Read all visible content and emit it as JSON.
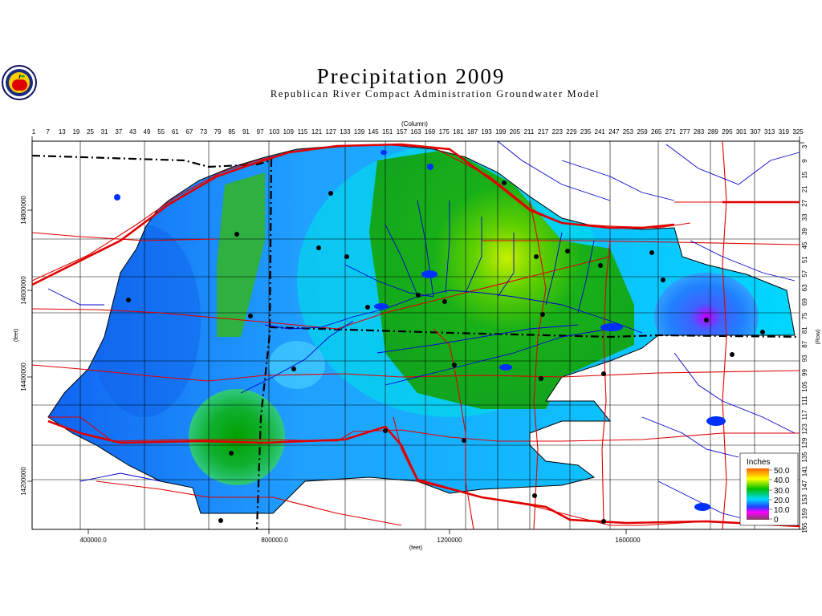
{
  "header": {
    "title": "Precipitation  2009",
    "subtitle": "Republican  River  Compact  Administration  Groundwater  Model"
  },
  "logo": {
    "icon": "apple-seal-icon"
  },
  "axes": {
    "column_title": "(Column)",
    "column_ticks": [
      "1",
      "7",
      "13",
      "19",
      "25",
      "31",
      "37",
      "43",
      "49",
      "55",
      "61",
      "67",
      "73",
      "79",
      "85",
      "91",
      "97",
      "103",
      "109",
      "115",
      "121",
      "127",
      "133",
      "139",
      "145",
      "151",
      "157",
      "163",
      "169",
      "175",
      "181",
      "187",
      "193",
      "199",
      "205",
      "211",
      "217",
      "223",
      "229",
      "235",
      "241",
      "247",
      "253",
      "259",
      "265",
      "271",
      "277",
      "283",
      "289",
      "295",
      "301",
      "307",
      "313",
      "319",
      "325"
    ],
    "row_title": "(Row)",
    "row_ticks": [
      "3",
      "9",
      "15",
      "21",
      "27",
      "33",
      "39",
      "45",
      "51",
      "57",
      "63",
      "69",
      "75",
      "81",
      "87",
      "93",
      "99",
      "105",
      "111",
      "117",
      "123",
      "129",
      "135",
      "141",
      "147",
      "153",
      "159",
      "165"
    ],
    "x_title": "(feet)",
    "x_ticks": [
      "400000.0",
      "800000.0",
      "1200000",
      "1600000"
    ],
    "y_title": "(feet)",
    "y_ticks": [
      "14800000",
      "14600000",
      "14400000",
      "14200000"
    ]
  },
  "legend": {
    "title": "Inches",
    "entries": [
      {
        "label": "50.0",
        "color": "#ff6000"
      },
      {
        "label": "40.0",
        "color": "#ffff00"
      },
      {
        "label": "30.0",
        "color": "#00b000"
      },
      {
        "label": "20.0",
        "color": "#00c8ff"
      },
      {
        "label": "10.0",
        "color": "#ff00ff"
      },
      {
        "label": "0",
        "color": "#804060"
      }
    ]
  }
}
